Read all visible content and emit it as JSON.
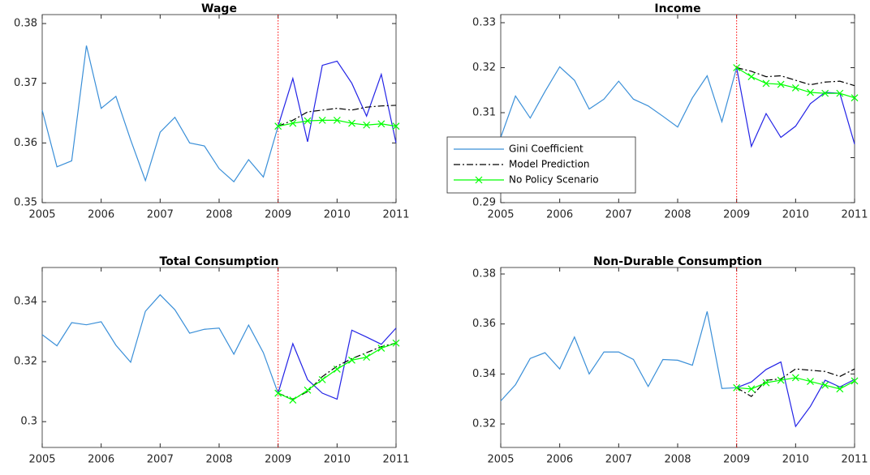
{
  "chart_data": [
    {
      "type": "line",
      "title": "Wage",
      "x": [
        2005,
        2005.25,
        2005.5,
        2005.75,
        2006,
        2006.25,
        2006.5,
        2006.75,
        2007,
        2007.25,
        2007.5,
        2007.75,
        2008,
        2008.25,
        2008.5,
        2008.75,
        2009,
        2009.25,
        2009.5,
        2009.75,
        2010,
        2010.25,
        2010.5,
        2010.75,
        2011
      ],
      "series": [
        {
          "name": "Gini Coefficient",
          "color": "#3a8fd8",
          "style": "solid",
          "values": [
            0.3655,
            0.356,
            0.357,
            0.3763,
            0.3658,
            0.3678,
            0.3605,
            0.3537,
            0.3618,
            0.3643,
            0.36,
            0.3595,
            0.3557,
            0.3535,
            0.3572,
            0.3543,
            0.3628,
            null,
            null,
            null,
            null,
            null,
            null,
            null,
            null
          ]
        },
        {
          "color": "#2323e6",
          "style": "solid",
          "values": [
            null,
            null,
            null,
            null,
            null,
            null,
            null,
            null,
            null,
            null,
            null,
            null,
            null,
            null,
            null,
            null,
            0.3628,
            0.3708,
            0.3602,
            0.373,
            0.3737,
            0.37,
            0.3645,
            0.3715,
            0.36
          ]
        },
        {
          "name": "Model Prediction",
          "color": "#000000",
          "style": "dashdot",
          "values": [
            null,
            null,
            null,
            null,
            null,
            null,
            null,
            null,
            null,
            null,
            null,
            null,
            null,
            null,
            null,
            null,
            0.3628,
            0.3638,
            0.3652,
            0.3655,
            0.3658,
            0.3655,
            0.366,
            0.3662,
            0.3663
          ]
        },
        {
          "name": "No Policy Scenario",
          "color": "#00ff00",
          "style": "solid",
          "marker": "x",
          "values": [
            null,
            null,
            null,
            null,
            null,
            null,
            null,
            null,
            null,
            null,
            null,
            null,
            null,
            null,
            null,
            null,
            0.3628,
            0.3633,
            0.3637,
            0.3638,
            0.3638,
            0.3633,
            0.363,
            0.3632,
            0.3628
          ]
        }
      ],
      "xlim": [
        2005,
        2011
      ],
      "xticks": [
        2005,
        2006,
        2007,
        2008,
        2009,
        2010,
        2011
      ],
      "ylim": [
        0.35,
        0.3815
      ],
      "yticks": [
        0.35,
        0.36,
        0.37,
        0.38
      ],
      "vline": 2009,
      "vline_color": "#ff0000"
    },
    {
      "type": "line",
      "title": "Income",
      "x": [
        2005,
        2005.25,
        2005.5,
        2005.75,
        2006,
        2006.25,
        2006.5,
        2006.75,
        2007,
        2007.25,
        2007.5,
        2007.75,
        2008,
        2008.25,
        2008.5,
        2008.75,
        2009,
        2009.25,
        2009.5,
        2009.75,
        2010,
        2010.25,
        2010.5,
        2010.75,
        2011
      ],
      "series": [
        {
          "name": "Gini Coefficient",
          "color": "#3a8fd8",
          "style": "solid",
          "values": [
            0.3045,
            0.3137,
            0.3088,
            0.3147,
            0.3202,
            0.3172,
            0.3108,
            0.313,
            0.317,
            0.313,
            0.3115,
            0.3092,
            0.3068,
            0.3133,
            0.3182,
            0.308,
            0.32,
            null,
            null,
            null,
            null,
            null,
            null,
            null,
            null
          ]
        },
        {
          "color": "#2323e6",
          "style": "solid",
          "values": [
            null,
            null,
            null,
            null,
            null,
            null,
            null,
            null,
            null,
            null,
            null,
            null,
            null,
            null,
            null,
            null,
            0.32,
            0.3025,
            0.3098,
            0.3045,
            0.307,
            0.312,
            0.3145,
            0.3143,
            0.303
          ]
        },
        {
          "name": "Model Prediction",
          "color": "#000000",
          "style": "dashdot",
          "values": [
            null,
            null,
            null,
            null,
            null,
            null,
            null,
            null,
            null,
            null,
            null,
            null,
            null,
            null,
            null,
            null,
            0.32,
            0.3192,
            0.318,
            0.3182,
            0.3172,
            0.3162,
            0.3168,
            0.317,
            0.316
          ]
        },
        {
          "name": "No Policy Scenario",
          "color": "#00ff00",
          "style": "solid",
          "marker": "x",
          "values": [
            null,
            null,
            null,
            null,
            null,
            null,
            null,
            null,
            null,
            null,
            null,
            null,
            null,
            null,
            null,
            null,
            0.32,
            0.318,
            0.3165,
            0.3163,
            0.3155,
            0.3145,
            0.3143,
            0.3143,
            0.3133
          ]
        }
      ],
      "xlim": [
        2005,
        2011
      ],
      "xticks": [
        2005,
        2006,
        2007,
        2008,
        2009,
        2010,
        2011
      ],
      "ylim": [
        0.29,
        0.3318
      ],
      "yticks": [
        0.29,
        0.3,
        0.31,
        0.32,
        0.33
      ],
      "vline": 2009,
      "vline_color": "#ff0000",
      "legend": "southwest"
    },
    {
      "type": "line",
      "title": "Total Consumption",
      "x": [
        2005,
        2005.25,
        2005.5,
        2005.75,
        2006,
        2006.25,
        2006.5,
        2006.75,
        2007,
        2007.25,
        2007.5,
        2007.75,
        2008,
        2008.25,
        2008.5,
        2008.75,
        2009,
        2009.25,
        2009.5,
        2009.75,
        2010,
        2010.25,
        2010.5,
        2010.75,
        2011
      ],
      "series": [
        {
          "name": "Gini Coefficient",
          "color": "#3a8fd8",
          "style": "solid",
          "values": [
            0.329,
            0.3253,
            0.333,
            0.3323,
            0.3333,
            0.3255,
            0.3198,
            0.3368,
            0.3423,
            0.3373,
            0.3295,
            0.3308,
            0.3312,
            0.3225,
            0.3322,
            0.323,
            0.3095,
            null,
            null,
            null,
            null,
            null,
            null,
            null,
            null
          ]
        },
        {
          "color": "#2323e6",
          "style": "solid",
          "values": [
            null,
            null,
            null,
            null,
            null,
            null,
            null,
            null,
            null,
            null,
            null,
            null,
            null,
            null,
            null,
            null,
            0.3095,
            0.326,
            0.314,
            0.3095,
            0.3075,
            0.3305,
            0.3282,
            0.3258,
            0.3312
          ]
        },
        {
          "name": "Model Prediction",
          "color": "#000000",
          "style": "dashdot",
          "values": [
            null,
            null,
            null,
            null,
            null,
            null,
            null,
            null,
            null,
            null,
            null,
            null,
            null,
            null,
            null,
            null,
            0.3095,
            0.3075,
            0.31,
            0.315,
            0.3185,
            0.321,
            0.323,
            0.325,
            0.3262
          ]
        },
        {
          "name": "No Policy Scenario",
          "color": "#00ff00",
          "style": "solid",
          "marker": "x",
          "values": [
            null,
            null,
            null,
            null,
            null,
            null,
            null,
            null,
            null,
            null,
            null,
            null,
            null,
            null,
            null,
            null,
            0.3095,
            0.3072,
            0.3105,
            0.314,
            0.3175,
            0.3205,
            0.3215,
            0.3245,
            0.3262
          ]
        }
      ],
      "xlim": [
        2005,
        2011
      ],
      "xticks": [
        2005,
        2006,
        2007,
        2008,
        2009,
        2010,
        2011
      ],
      "ylim": [
        0.2914,
        0.3514
      ],
      "yticks": [
        0.3,
        0.32,
        0.34
      ],
      "vline": 2009,
      "vline_color": "#ff0000"
    },
    {
      "type": "line",
      "title": "Non-Durable Consumption",
      "x": [
        2005,
        2005.25,
        2005.5,
        2005.75,
        2006,
        2006.25,
        2006.5,
        2006.75,
        2007,
        2007.25,
        2007.5,
        2007.75,
        2008,
        2008.25,
        2008.5,
        2008.75,
        2009,
        2009.25,
        2009.5,
        2009.75,
        2010,
        2010.25,
        2010.5,
        2010.75,
        2011
      ],
      "series": [
        {
          "name": "Gini Coefficient",
          "color": "#3a8fd8",
          "style": "solid",
          "values": [
            0.3292,
            0.3357,
            0.3462,
            0.3485,
            0.342,
            0.3548,
            0.34,
            0.3488,
            0.3488,
            0.3458,
            0.335,
            0.3458,
            0.3455,
            0.3435,
            0.365,
            0.3342,
            0.3345,
            null,
            null,
            null,
            null,
            null,
            null,
            null,
            null
          ]
        },
        {
          "color": "#2323e6",
          "style": "solid",
          "values": [
            null,
            null,
            null,
            null,
            null,
            null,
            null,
            null,
            null,
            null,
            null,
            null,
            null,
            null,
            null,
            null,
            0.3345,
            0.3368,
            0.3418,
            0.3448,
            0.319,
            0.327,
            0.3375,
            0.3348,
            0.3378
          ]
        },
        {
          "name": "Model Prediction",
          "color": "#000000",
          "style": "dashdot",
          "values": [
            null,
            null,
            null,
            null,
            null,
            null,
            null,
            null,
            null,
            null,
            null,
            null,
            null,
            null,
            null,
            null,
            0.3345,
            0.331,
            0.3375,
            0.338,
            0.342,
            0.3415,
            0.341,
            0.339,
            0.342
          ]
        },
        {
          "name": "No Policy Scenario",
          "color": "#00ff00",
          "style": "solid",
          "marker": "x",
          "values": [
            null,
            null,
            null,
            null,
            null,
            null,
            null,
            null,
            null,
            null,
            null,
            null,
            null,
            null,
            null,
            null,
            0.3345,
            0.334,
            0.3365,
            0.3375,
            0.3385,
            0.337,
            0.3355,
            0.334,
            0.3372
          ]
        }
      ],
      "xlim": [
        2005,
        2011
      ],
      "xticks": [
        2005,
        2006,
        2007,
        2008,
        2009,
        2010,
        2011
      ],
      "ylim": [
        0.3106,
        0.3826
      ],
      "yticks": [
        0.32,
        0.34,
        0.36,
        0.38
      ],
      "vline": 2009,
      "vline_color": "#ff0000"
    }
  ]
}
